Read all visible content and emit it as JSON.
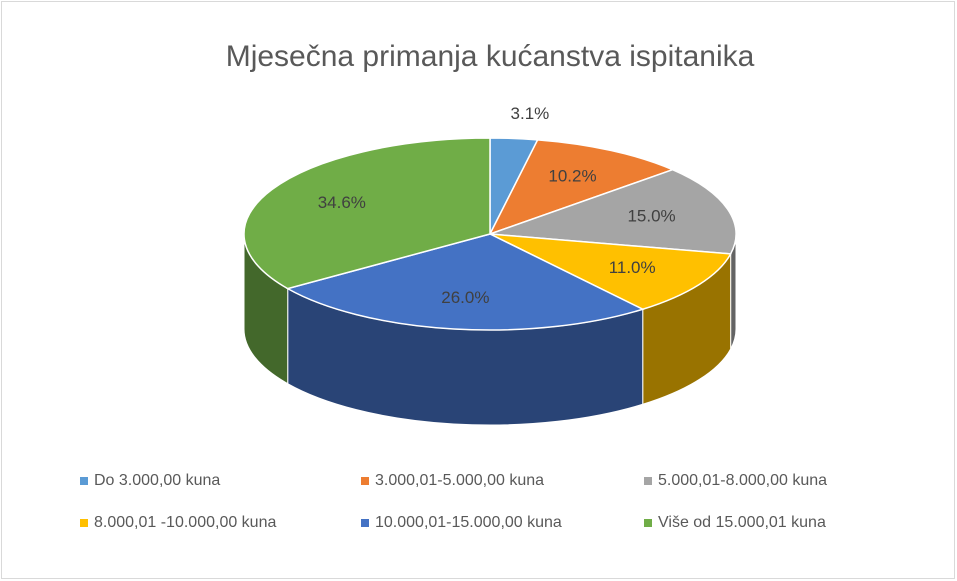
{
  "chart_data": {
    "type": "pie3d",
    "title": "Mjesečna primanja kućanstva ispitanika",
    "categories": [
      "Do 3.000,00 kuna",
      "3.000,01-5.000,00 kuna",
      "5.000,01-8.000,00 kuna",
      "8.000,01 -10.000,00 kuna",
      "10.000,01-15.000,00 kuna",
      "Više od 15.000,01 kuna"
    ],
    "values": [
      3.1,
      10.2,
      15.0,
      11.0,
      26.0,
      34.6
    ],
    "value_labels": [
      "3.1%",
      "10.2%",
      "15.0%",
      "11.0%",
      "26.0%",
      "34.6%"
    ],
    "colors": [
      "#5b9bd5",
      "#ed7d31",
      "#a5a5a5",
      "#ffc000",
      "#4472c4",
      "#70ad47"
    ],
    "legend": "bottom"
  }
}
